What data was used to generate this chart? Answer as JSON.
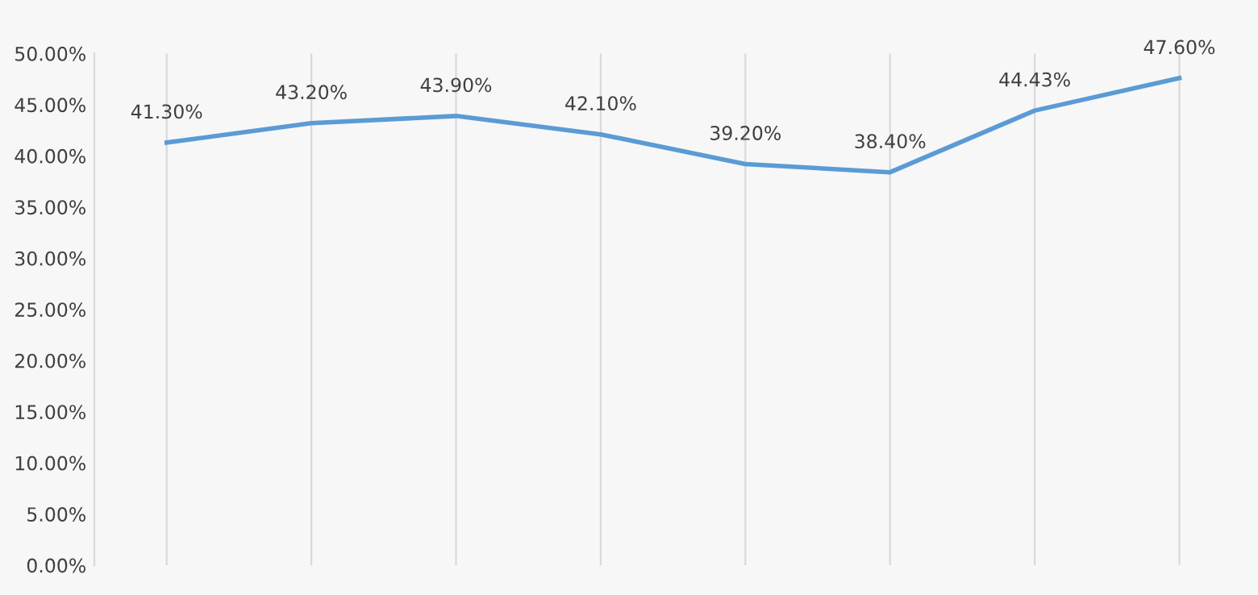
{
  "chart_data": {
    "type": "line",
    "categories": [
      null,
      null,
      null,
      null,
      null,
      null,
      null,
      null
    ],
    "series": [
      {
        "color": "#5b9bd5",
        "values": [
          41.3,
          43.2,
          43.9,
          42.1,
          39.2,
          38.4,
          44.43,
          47.6
        ],
        "value_labels": [
          "41.30%",
          "43.20%",
          "43.90%",
          "42.10%",
          "39.20%",
          "38.40%",
          "44.43%",
          "47.60%"
        ]
      }
    ],
    "ylim": [
      0,
      50
    ],
    "yticks": [
      {
        "value": 0,
        "label": "0.00%"
      },
      {
        "value": 5,
        "label": "5.00%"
      },
      {
        "value": 10,
        "label": "10.00%"
      },
      {
        "value": 15,
        "label": "15.00%"
      },
      {
        "value": 20,
        "label": "20.00%"
      },
      {
        "value": 25,
        "label": "25.00%"
      },
      {
        "value": 30,
        "label": "30.00%"
      },
      {
        "value": 35,
        "label": "35.00%"
      },
      {
        "value": 40,
        "label": "40.00%"
      },
      {
        "value": 45,
        "label": "45.00%"
      },
      {
        "value": 50,
        "label": "50.00%"
      }
    ],
    "grid": "x",
    "marker": "none",
    "line_style": "solid",
    "legend": false
  }
}
